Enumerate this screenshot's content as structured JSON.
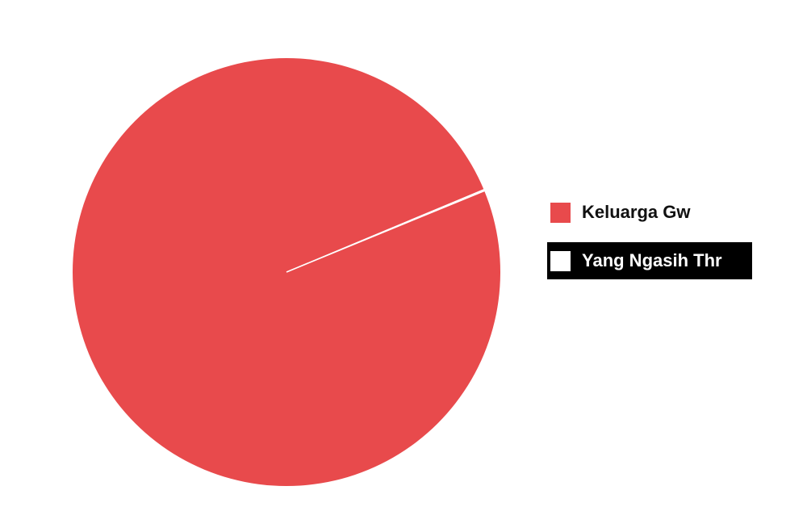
{
  "chart_data": {
    "type": "pie",
    "title": "",
    "labels": [
      "Keluarga Gw",
      "Yang Ngasih Thr"
    ],
    "values": [
      99.9,
      0.1
    ],
    "colors": [
      "#e84a4c",
      "#ffffff"
    ],
    "legend_position": "right",
    "highlighted_legend_entry": "Yang Ngasih Thr",
    "highlight_color": "#000000"
  }
}
